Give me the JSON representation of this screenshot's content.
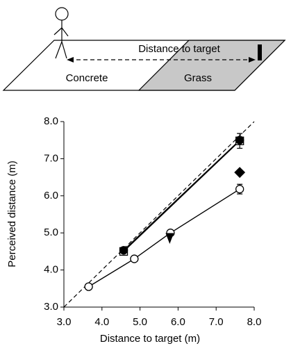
{
  "diagram": {
    "distance_label": "Distance to target",
    "left_surface": "Concrete",
    "right_surface": "Grass"
  },
  "chart_data": {
    "type": "scatter",
    "xlabel": "Distance to target (m)",
    "ylabel": "Perceived distance (m)",
    "xlim": [
      3,
      8
    ],
    "ylim": [
      3,
      8
    ],
    "xticks": [
      {
        "value": 3,
        "label": "3.0"
      },
      {
        "value": 4,
        "label": "4.0"
      },
      {
        "value": 5,
        "label": "5.0"
      },
      {
        "value": 6,
        "label": "6.0"
      },
      {
        "value": 7,
        "label": "7.0"
      },
      {
        "value": 8,
        "label": "8.0"
      }
    ],
    "yticks": [
      {
        "value": 3,
        "label": "3.0"
      },
      {
        "value": 4,
        "label": "4.0"
      },
      {
        "value": 5,
        "label": "5.0"
      },
      {
        "value": 6,
        "label": "6.0"
      },
      {
        "value": 7,
        "label": "7.0"
      },
      {
        "value": 8,
        "label": "8.0"
      }
    ],
    "identity_line": true,
    "series": [
      {
        "marker": "circle-open",
        "line": true,
        "color": "#000000",
        "x": [
          3.65,
          4.85,
          5.8,
          7.62
        ],
        "values": [
          3.55,
          4.3,
          5.0,
          6.18
        ],
        "errors": [
          null,
          null,
          null,
          0.13
        ]
      },
      {
        "marker": "square-open",
        "line": true,
        "color": "#000000",
        "x": [
          4.57,
          7.62
        ],
        "values": [
          4.5,
          7.48
        ],
        "errors": [
          null,
          0.2
        ]
      },
      {
        "marker": "circle",
        "line": true,
        "color": "#000000",
        "x": [
          4.57,
          7.62
        ],
        "values": [
          4.53,
          7.5
        ],
        "errors": [
          null,
          null
        ]
      },
      {
        "marker": "diamond",
        "line": false,
        "color": "#000000",
        "x": [
          7.62
        ],
        "values": [
          6.63
        ],
        "errors": [
          null
        ]
      },
      {
        "marker": "triangle-down",
        "line": false,
        "color": "#000000",
        "x": [
          5.78
        ],
        "values": [
          4.87
        ],
        "errors": [
          null
        ]
      }
    ]
  }
}
